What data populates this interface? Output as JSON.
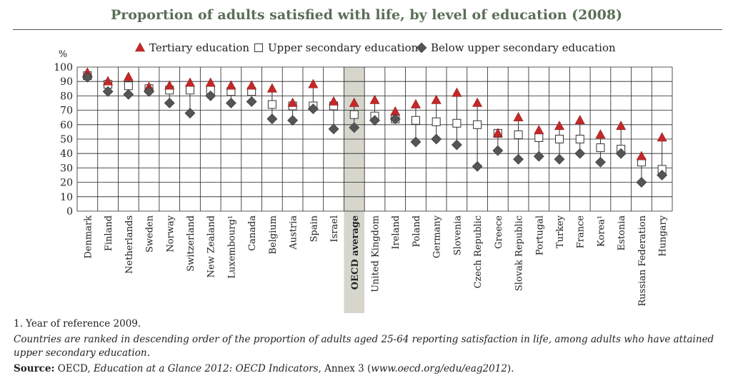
{
  "title": "Proportion of adults satisfied with life, by level of education (2008)",
  "notes": {
    "footnote": "1. Year of reference 2009.",
    "ranking": "Countries are ranked in descending order of the proportion of adults aged 25-64 reporting satisfaction in life, among adults who have attained upper secondary education.",
    "source_label": "Source:",
    "source_org": " OECD, ",
    "source_pub": "Education at a Glance 2012: OECD Indicators",
    "source_annex": ", Annex 3 (",
    "source_url": "www.oecd.org/edu/eag2012",
    "source_end": ")."
  },
  "chart_data": {
    "type": "scatter",
    "ylabel": "%",
    "ylim": [
      0,
      100
    ],
    "yticks": [
      0,
      10,
      20,
      30,
      40,
      50,
      60,
      70,
      80,
      90,
      100
    ],
    "grid": true,
    "legend_position": "top",
    "highlight_category": "OECD average",
    "highlight_color": "#d6d6cc",
    "categories": [
      "Denmark",
      "Finland",
      "Netherlands",
      "Sweden",
      "Norway",
      "Switzerland",
      "New Zealand",
      "Luxembourg¹",
      "Canada",
      "Belgium",
      "Austria",
      "Spain",
      "Israel",
      "OECD average",
      "United Kingdom",
      "Ireland",
      "Poland",
      "Germany",
      "Slovenia",
      "Czech Republic",
      "Greece",
      "Slovak Republic",
      "Portugal",
      "Turkey",
      "France",
      "Korea¹",
      "Estonia",
      "Russian Federation",
      "Hungary"
    ],
    "series": [
      {
        "name": "Tertiary education",
        "marker": "triangle",
        "color": "#c62828",
        "values": [
          96,
          90,
          93,
          86,
          87,
          89,
          89,
          87,
          87,
          85,
          75,
          88,
          76,
          75,
          77,
          69,
          74,
          77,
          82,
          75,
          54,
          65,
          56,
          59,
          63,
          53,
          59,
          38,
          51
        ]
      },
      {
        "name": "Upper secondary education",
        "marker": "square",
        "color": "#ffffff",
        "values": [
          94,
          88,
          87,
          85,
          84,
          84,
          84,
          83,
          83,
          74,
          73,
          73,
          73,
          67,
          66,
          64,
          63,
          62,
          61,
          60,
          54,
          53,
          51,
          50,
          50,
          44,
          43,
          34,
          29
        ]
      },
      {
        "name": "Below upper secondary education",
        "marker": "diamond",
        "color": "#555555",
        "values": [
          93,
          83,
          81,
          83,
          75,
          68,
          80,
          75,
          76,
          64,
          63,
          71,
          57,
          58,
          63,
          64,
          48,
          50,
          46,
          31,
          42,
          36,
          38,
          36,
          40,
          34,
          40,
          20,
          25
        ]
      }
    ]
  }
}
